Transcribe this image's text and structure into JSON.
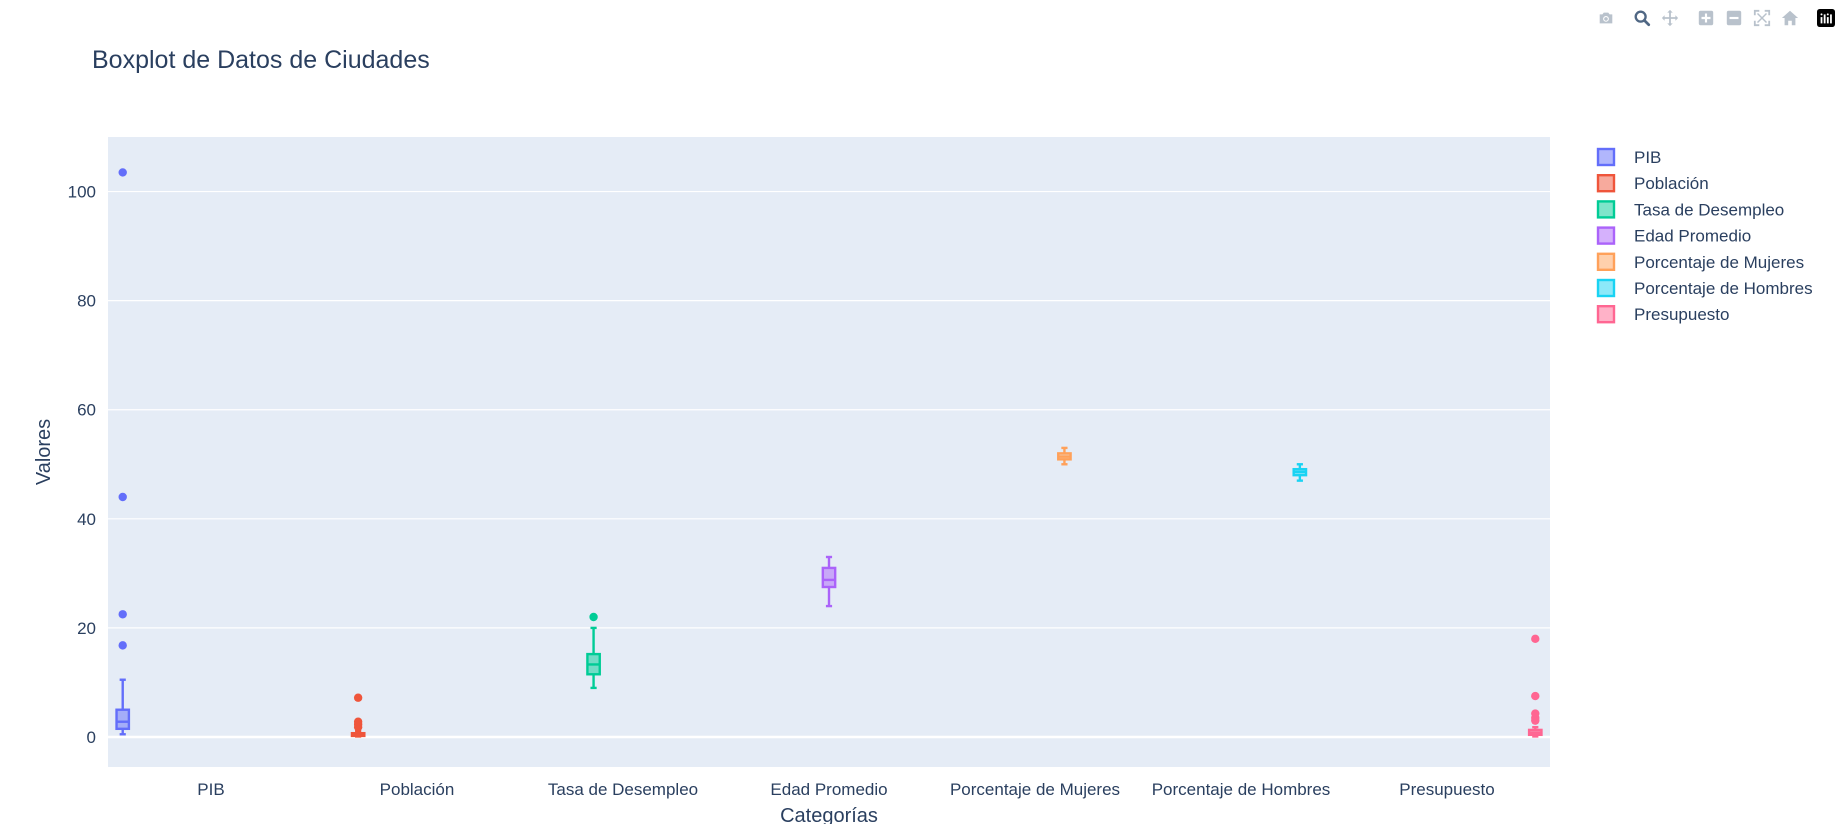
{
  "toolbar": {
    "buttons": [
      {
        "name": "camera-icon",
        "label": "Download plot as a png"
      },
      {
        "name": "zoom-icon",
        "label": "Zoom",
        "active": true
      },
      {
        "name": "pan-icon",
        "label": "Pan"
      },
      {
        "name": "zoom-in-icon",
        "label": "Zoom in"
      },
      {
        "name": "zoom-out-icon",
        "label": "Zoom out"
      },
      {
        "name": "autoscale-icon",
        "label": "Autoscale"
      },
      {
        "name": "reset-axes-icon",
        "label": "Reset axes"
      },
      {
        "name": "plotly-logo-icon",
        "label": "Produced with Plotly"
      }
    ]
  },
  "chart_data": {
    "type": "box",
    "title": "Boxplot de Datos de Ciudades",
    "xlabel": "Categorías",
    "ylabel": "Valores",
    "ylim": [
      -5.5,
      110
    ],
    "yticks": [
      0,
      20,
      40,
      60,
      80,
      100
    ],
    "grid": true,
    "legend_position": "right",
    "categories": [
      "PIB",
      "Población",
      "Tasa de Desempleo",
      "Edad Promedio",
      "Porcentaje de Mujeres",
      "Porcentaje de Hombres",
      "Presupuesto"
    ],
    "series": [
      {
        "name": "PIB",
        "color": "#636efa",
        "whisker_low": 0.5,
        "q1": 1.5,
        "median": 2.8,
        "q3": 5.0,
        "whisker_high": 10.5,
        "outliers": [
          16.8,
          22.5,
          44.0,
          103.5
        ]
      },
      {
        "name": "Población",
        "color": "#ef553b",
        "whisker_low": 0.1,
        "q1": 0.2,
        "median": 0.4,
        "q3": 0.7,
        "whisker_high": 1.1,
        "outliers": [
          1.8,
          2.3,
          2.8,
          7.2
        ]
      },
      {
        "name": "Tasa de Desempleo",
        "color": "#00cc96",
        "whisker_low": 9.0,
        "q1": 11.5,
        "median": 13.3,
        "q3": 15.2,
        "whisker_high": 20.0,
        "outliers": [
          22.0
        ]
      },
      {
        "name": "Edad Promedio",
        "color": "#ab63fa",
        "whisker_low": 24.0,
        "q1": 27.5,
        "median": 28.8,
        "q3": 31.0,
        "whisker_high": 33.0,
        "outliers": []
      },
      {
        "name": "Porcentaje de Mujeres",
        "color": "#ffa15a",
        "whisker_low": 50.0,
        "q1": 50.9,
        "median": 51.4,
        "q3": 52.0,
        "whisker_high": 53.0,
        "outliers": []
      },
      {
        "name": "Porcentaje de Hombres",
        "color": "#19d3f3",
        "whisker_low": 47.0,
        "q1": 48.0,
        "median": 48.6,
        "q3": 49.1,
        "whisker_high": 50.0,
        "outliers": []
      },
      {
        "name": "Presupuesto",
        "color": "#ff6692",
        "whisker_low": 0.1,
        "q1": 0.4,
        "median": 0.8,
        "q3": 1.3,
        "whisker_high": 1.8,
        "outliers": [
          3.0,
          3.5,
          4.3,
          7.5,
          18.0
        ]
      }
    ]
  }
}
